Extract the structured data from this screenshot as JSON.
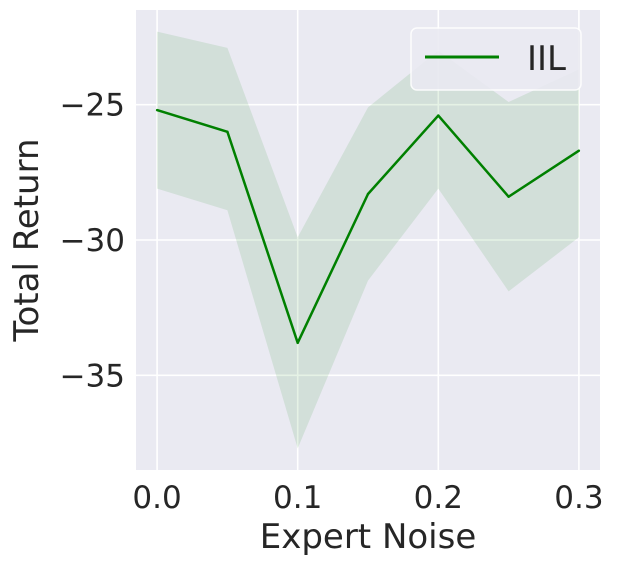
{
  "chart_data": {
    "type": "line",
    "xlabel": "Expert Noise",
    "ylabel": "Total Return",
    "xlim": [
      -0.015,
      0.315
    ],
    "ylim": [
      -38.5,
      -21.5
    ],
    "x_ticks": [
      0.0,
      0.1,
      0.2,
      0.3
    ],
    "x_tick_labels": [
      "0.0",
      "0.1",
      "0.2",
      "0.3"
    ],
    "y_ticks": [
      -25,
      -30,
      -35
    ],
    "y_tick_labels": [
      "−25",
      "−30",
      "−35"
    ],
    "grid": true,
    "legend_position": "top-right",
    "series": [
      {
        "name": "IIL",
        "color": "#008000",
        "band_color": "#008000",
        "x": [
          0.0,
          0.05,
          0.1,
          0.15,
          0.2,
          0.25,
          0.3
        ],
        "values": [
          -25.2,
          -26.0,
          -33.8,
          -28.3,
          -25.4,
          -28.4,
          -26.7
        ],
        "band_upper": [
          -22.3,
          -22.9,
          -29.9,
          -25.1,
          -23.0,
          -24.9,
          -23.7
        ],
        "band_lower": [
          -28.1,
          -28.9,
          -37.7,
          -31.5,
          -28.1,
          -31.9,
          -29.9
        ]
      }
    ]
  }
}
